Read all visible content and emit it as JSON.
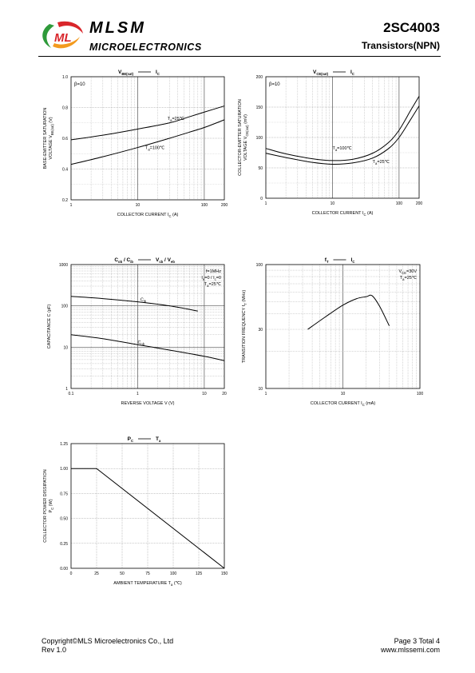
{
  "header": {
    "brand": "MLSM",
    "brand_sub": "MICROELECTRONICS",
    "part_number": "2SC4003",
    "part_type": "Transistors(NPN)",
    "colors": {
      "logo_green": "#2e9a3a",
      "logo_red": "#d9262b",
      "logo_orange": "#f39a1e"
    }
  },
  "footer": {
    "copyright": "Copyright©MLS Microelectronics Co., Ltd",
    "revision": "Rev 1.0",
    "page": "Page 3 Total 4",
    "website": "www.mlssemi.com"
  },
  "chart_data": [
    {
      "id": "vbe",
      "type": "line",
      "title_main": "V",
      "title_sub": "BE(sat)",
      "title_rhs": "I",
      "title_rhs_sub": "C",
      "xlabel": "COLLECTOR CURRENT   I",
      "xlabel_sub": "C",
      "xlabel_unit": "(A)",
      "ylabel_l1": "BASE-EMITTER SATURATION",
      "ylabel_l2": "VOLTAGE   V",
      "ylabel_l2_sub": "BE(sat)",
      "ylabel_l2_unit": "(V)",
      "x_scale": "log",
      "xlim": [
        1,
        200
      ],
      "y_scale": "linear",
      "ylim": [
        0.2,
        1.0
      ],
      "x_ticks": [
        "1",
        "10",
        "100",
        "200"
      ],
      "y_ticks": [
        "0.2",
        "0.4",
        "0.6",
        "0.8",
        "1.0"
      ],
      "annotation": "β=10",
      "series": [
        {
          "label_main": "T",
          "label_sub": "a",
          "label_rest": "=25℃",
          "x": [
            1,
            3,
            10,
            30,
            60,
            100,
            200
          ],
          "y": [
            0.59,
            0.62,
            0.66,
            0.7,
            0.74,
            0.77,
            0.81
          ]
        },
        {
          "label_main": "T",
          "label_sub": "a",
          "label_rest": "=100℃",
          "x": [
            1,
            3,
            10,
            30,
            60,
            100,
            200
          ],
          "y": [
            0.43,
            0.48,
            0.54,
            0.6,
            0.64,
            0.67,
            0.72
          ]
        }
      ]
    },
    {
      "id": "vce",
      "type": "line",
      "title_main": "V",
      "title_sub": "CE(sat)",
      "title_rhs": "I",
      "title_rhs_sub": "C",
      "xlabel": "COLLECTOR CURRENT   I",
      "xlabel_sub": "C",
      "xlabel_unit": "(A)",
      "ylabel_l1": "COLLECTOR-EMITTER SATURATION",
      "ylabel_l2": "VOLTAGE   V",
      "ylabel_l2_sub": "CE(sat)",
      "ylabel_l2_unit": "(mV)",
      "x_scale": "log",
      "xlim": [
        1,
        200
      ],
      "y_scale": "linear",
      "ylim": [
        0,
        200
      ],
      "x_ticks": [
        "1",
        "10",
        "100",
        "200"
      ],
      "y_ticks": [
        "0",
        "50",
        "100",
        "150",
        "200"
      ],
      "annotation": "β=10",
      "series": [
        {
          "label_main": "T",
          "label_sub": "a",
          "label_rest": "=100℃",
          "x": [
            1,
            2,
            5,
            10,
            20,
            40,
            70,
            100,
            150,
            200
          ],
          "y": [
            82,
            73,
            65,
            62,
            64,
            74,
            92,
            112,
            145,
            168
          ]
        },
        {
          "label_main": "T",
          "label_sub": "a",
          "label_rest": "=25℃",
          "x": [
            1,
            2,
            5,
            10,
            20,
            40,
            70,
            100,
            150,
            200
          ],
          "y": [
            74,
            67,
            59,
            56,
            58,
            66,
            82,
            100,
            130,
            152
          ]
        }
      ]
    },
    {
      "id": "cap",
      "type": "line",
      "title_main": "C",
      "title_sub": "ob",
      "title_mid": " / C",
      "title_mid_sub": "ib",
      "title_rhs": "V",
      "title_rhs_sub": "cb",
      "title_rhs2": " / V",
      "title_rhs2_sub": "eb",
      "xlabel": "REVERSE  VOLTAGE   V    (V)",
      "ylabel_l1": "CAPACITANCE   C    (pF)",
      "x_scale": "log",
      "xlim": [
        0.1,
        20
      ],
      "y_scale": "log",
      "ylim": [
        1,
        1000
      ],
      "x_ticks": [
        "0.1",
        "1",
        "10",
        "20"
      ],
      "y_ticks": [
        "1",
        "10",
        "100",
        "1000"
      ],
      "conditions": [
        {
          "main": "f=1MHz"
        },
        {
          "main": "I",
          "sub": "e",
          "rest": "=0 / I",
          "sub2": "c",
          "rest2": "=0"
        },
        {
          "main": "T",
          "sub": "a",
          "rest": "=25℃"
        }
      ],
      "series": [
        {
          "label_main": "C",
          "label_sub": "ib",
          "x": [
            0.1,
            0.3,
            1,
            3,
            8
          ],
          "y": [
            170,
            150,
            125,
            100,
            75
          ]
        },
        {
          "label_main": "C",
          "label_sub": "ob",
          "x": [
            0.1,
            0.3,
            1,
            3,
            10,
            20
          ],
          "y": [
            20,
            16,
            11.5,
            8.5,
            6,
            4.7
          ]
        }
      ]
    },
    {
      "id": "ft",
      "type": "line",
      "title_main": "f",
      "title_sub": "T",
      "title_rhs": "I",
      "title_rhs_sub": "C",
      "xlabel": "COLLECTOR CURRENT   I",
      "xlabel_sub": "C",
      "xlabel_unit": "(mA)",
      "ylabel_l1": "TRANSITION FREQUENCY   f",
      "ylabel_l1_sub": "T",
      "ylabel_l1_unit": "(MHz)",
      "x_scale": "log",
      "xlim": [
        1,
        100
      ],
      "y_scale": "log",
      "ylim": [
        10,
        100
      ],
      "x_ticks": [
        "1",
        "10",
        "100"
      ],
      "y_ticks": [
        "10",
        "30",
        "100"
      ],
      "conditions": [
        {
          "main": "V",
          "sub": "CE",
          "rest": "=30V"
        },
        {
          "main": "T",
          "sub": "a",
          "rest": "=25℃"
        }
      ],
      "series": [
        {
          "x": [
            3.5,
            6,
            10,
            15,
            20,
            24,
            30,
            40
          ],
          "y": [
            30,
            38,
            47,
            53,
            55,
            56,
            46,
            32
          ]
        }
      ]
    },
    {
      "id": "pc",
      "type": "line",
      "title_main": "P",
      "title_sub": "C",
      "title_rhs": "T",
      "title_rhs_sub": "a",
      "xlabel": "AMBIENT TEMPERATURE   T",
      "xlabel_sub": "a",
      "xlabel_unit": "(℃)",
      "ylabel_l1": "COLLECTOR POWER DISSIPATION",
      "ylabel_l2": "P",
      "ylabel_l2_sub": "C",
      "ylabel_l2_unit": "(W)",
      "x_scale": "linear",
      "xlim": [
        0,
        150
      ],
      "y_scale": "linear",
      "ylim": [
        0,
        1.25
      ],
      "x_ticks": [
        "0",
        "25",
        "50",
        "75",
        "100",
        "125",
        "150"
      ],
      "y_ticks": [
        "0.00",
        "0.25",
        "0.50",
        "0.75",
        "1.00",
        "1.25"
      ],
      "series": [
        {
          "x": [
            0,
            25,
            150
          ],
          "y": [
            1.0,
            1.0,
            0
          ]
        }
      ]
    }
  ]
}
